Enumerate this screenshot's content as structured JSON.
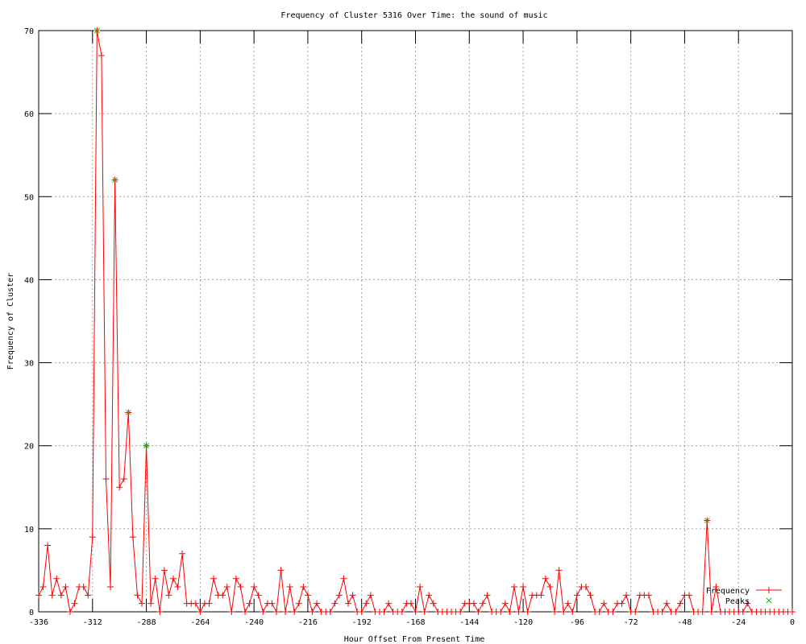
{
  "chart_data": {
    "type": "line",
    "title": "Frequency of Cluster 5316 Over Time: the sound of music",
    "xlabel": "Hour Offset From Present Time",
    "ylabel": "Frequency of Cluster",
    "xlim": [
      -336,
      0
    ],
    "ylim": [
      0,
      70
    ],
    "xticks": [
      -336,
      -312,
      -288,
      -264,
      -240,
      -216,
      -192,
      -168,
      -144,
      -120,
      -96,
      -72,
      -48,
      -24,
      0
    ],
    "yticks": [
      0,
      10,
      20,
      30,
      40,
      50,
      60,
      70
    ],
    "grid": true,
    "legend_position": "bottom-right",
    "series": [
      {
        "name": "Frequency",
        "color": "#ff0000",
        "marker": "plus",
        "x_start": -336,
        "x_step": 2,
        "values": [
          2,
          3,
          8,
          2,
          4,
          2,
          3,
          0,
          1,
          3,
          3,
          2,
          9,
          70,
          67,
          16,
          3,
          52,
          15,
          16,
          24,
          9,
          2,
          1,
          20,
          1,
          4,
          0,
          5,
          2,
          4,
          3,
          7,
          1,
          1,
          1,
          0,
          1,
          1,
          4,
          2,
          2,
          3,
          0,
          4,
          3,
          0,
          1,
          3,
          2,
          0,
          1,
          1,
          0,
          5,
          0,
          3,
          0,
          1,
          3,
          2,
          0,
          1,
          0,
          0,
          0,
          1,
          2,
          4,
          1,
          2,
          0,
          0,
          1,
          2,
          0,
          0,
          0,
          1,
          0,
          0,
          0,
          1,
          1,
          0,
          3,
          0,
          2,
          1,
          0,
          0,
          0,
          0,
          0,
          0,
          1,
          1,
          1,
          0,
          1,
          2,
          0,
          0,
          0,
          1,
          0,
          3,
          0,
          3,
          0,
          2,
          2,
          2,
          4,
          3,
          0,
          5,
          0,
          1,
          0,
          2,
          3,
          3,
          2,
          0,
          0,
          1,
          0,
          0,
          1,
          1,
          2,
          0,
          0,
          2,
          2,
          2,
          0,
          0,
          0,
          1,
          0,
          0,
          1,
          2,
          2,
          0,
          0,
          0,
          11,
          0,
          3,
          0,
          0,
          0,
          0,
          0,
          0,
          1,
          0,
          0,
          0,
          0,
          0,
          0,
          0,
          0,
          0,
          0
        ]
      },
      {
        "name": "Peaks",
        "color": "#00c000",
        "marker": "cross",
        "points": [
          [
            -310,
            70
          ],
          [
            -302,
            52
          ],
          [
            -296,
            24
          ],
          [
            -288,
            20
          ],
          [
            -38,
            11
          ]
        ]
      }
    ]
  }
}
